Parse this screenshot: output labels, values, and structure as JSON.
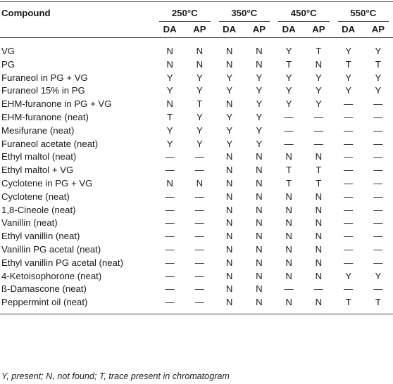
{
  "headers": {
    "compound": "Compound",
    "temps": [
      "250°C",
      "350°C",
      "450°C",
      "550°C"
    ],
    "methods": [
      "DA",
      "AP"
    ]
  },
  "rows": [
    {
      "name": "VG",
      "values": [
        "N",
        "N",
        "N",
        "N",
        "Y",
        "T",
        "Y",
        "Y"
      ]
    },
    {
      "name": "PG",
      "values": [
        "N",
        "N",
        "N",
        "N",
        "T",
        "N",
        "T",
        "T"
      ]
    },
    {
      "name": "Furaneol in PG + VG",
      "values": [
        "Y",
        "Y",
        "Y",
        "Y",
        "Y",
        "Y",
        "Y",
        "Y"
      ]
    },
    {
      "name": "Furaneol 15% in PG",
      "values": [
        "Y",
        "Y",
        "Y",
        "Y",
        "Y",
        "Y",
        "Y",
        "Y"
      ]
    },
    {
      "name": "EHM-furanone in PG + VG",
      "values": [
        "N",
        "T",
        "N",
        "Y",
        "Y",
        "Y",
        "—",
        "—"
      ]
    },
    {
      "name": "EHM-furanone (neat)",
      "values": [
        "T",
        "Y",
        "Y",
        "Y",
        "—",
        "—",
        "—",
        "—"
      ]
    },
    {
      "name": "Mesifurane (neat)",
      "values": [
        "Y",
        "Y",
        "Y",
        "Y",
        "—",
        "—",
        "—",
        "—"
      ]
    },
    {
      "name": "Furaneol acetate (neat)",
      "values": [
        "Y",
        "Y",
        "Y",
        "Y",
        "—",
        "—",
        "—",
        "—"
      ]
    },
    {
      "name": "Ethyl maltol (neat)",
      "values": [
        "—",
        "—",
        "N",
        "N",
        "N",
        "N",
        "—",
        "—"
      ]
    },
    {
      "name": "Ethyl maltol + VG",
      "values": [
        "—",
        "—",
        "N",
        "N",
        "T",
        "T",
        "—",
        "—"
      ]
    },
    {
      "name": "Cyclotene in PG + VG",
      "values": [
        "N",
        "N",
        "N",
        "N",
        "T",
        "T",
        "—",
        "—"
      ]
    },
    {
      "name": "Cyclotene (neat)",
      "values": [
        "—",
        "—",
        "N",
        "N",
        "N",
        "N",
        "—",
        "—"
      ]
    },
    {
      "name": "1,8-Cineole (neat)",
      "values": [
        "—",
        "—",
        "N",
        "N",
        "N",
        "N",
        "—",
        "—"
      ]
    },
    {
      "name": "Vanillin (neat)",
      "values": [
        "—",
        "—",
        "N",
        "N",
        "N",
        "N",
        "—",
        "—"
      ]
    },
    {
      "name": "Ethyl vanillin (neat)",
      "values": [
        "—",
        "—",
        "N",
        "N",
        "N",
        "N",
        "—",
        "—"
      ]
    },
    {
      "name": "Vanillin PG acetal (neat)",
      "values": [
        "—",
        "—",
        "N",
        "N",
        "N",
        "N",
        "—",
        "—"
      ]
    },
    {
      "name": "Ethyl vanillin PG acetal (neat)",
      "values": [
        "—",
        "—",
        "N",
        "N",
        "N",
        "N",
        "—",
        "—"
      ]
    },
    {
      "name": "4-Ketoisophorone (neat)",
      "values": [
        "—",
        "—",
        "N",
        "N",
        "N",
        "N",
        "Y",
        "Y"
      ]
    },
    {
      "name": "ß-Damascone (neat)",
      "values": [
        "—",
        "—",
        "N",
        "N",
        "—",
        "—",
        "—",
        "—"
      ]
    },
    {
      "name": "Peppermint oil (neat)",
      "values": [
        "—",
        "—",
        "N",
        "N",
        "N",
        "N",
        "T",
        "T"
      ]
    }
  ],
  "footnote": "Y, present; N, not found; T, trace present in chromatogram"
}
